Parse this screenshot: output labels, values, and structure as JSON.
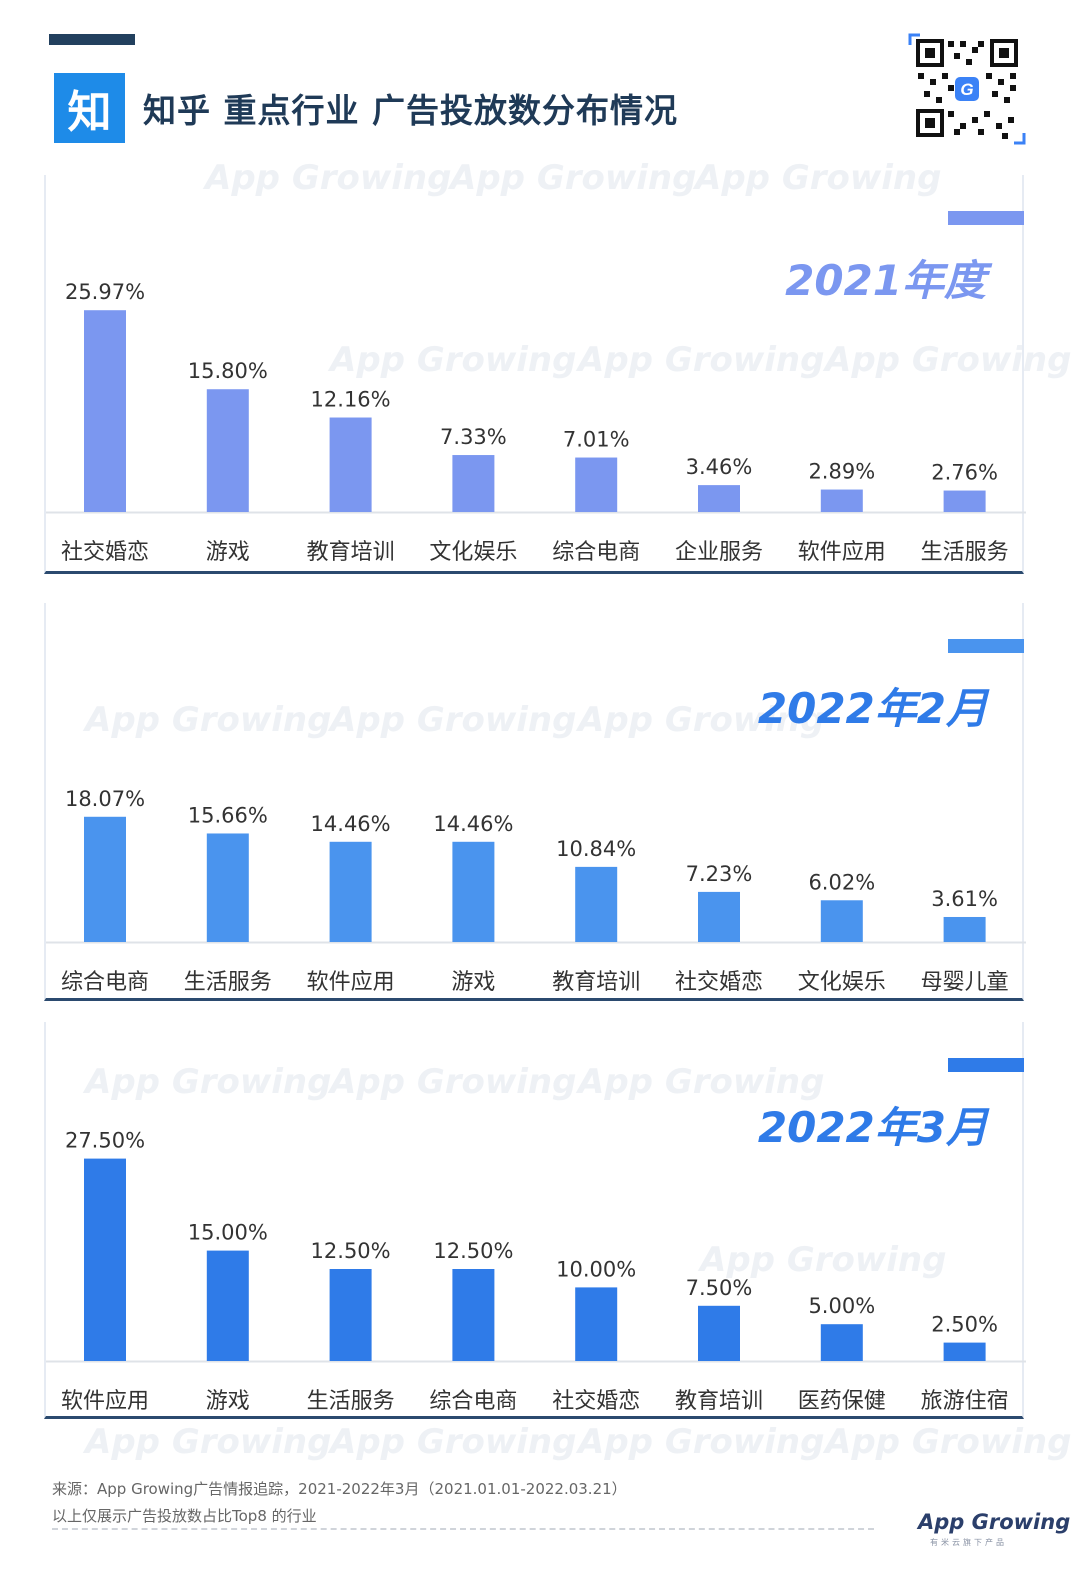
{
  "header": {
    "logo_char": "知",
    "title": "知乎 重点行业 广告投放数分布情况"
  },
  "watermark": "App Growing",
  "chart_data": [
    {
      "type": "bar",
      "title": "2021年度",
      "color": "#7b97f0",
      "categories": [
        "社交婚恋",
        "游戏",
        "教育培训",
        "文化娱乐",
        "综合电商",
        "企业服务",
        "软件应用",
        "生活服务"
      ],
      "values": [
        25.97,
        15.8,
        12.16,
        7.33,
        7.01,
        3.46,
        2.89,
        2.76
      ],
      "labels": [
        "25.97%",
        "15.80%",
        "12.16%",
        "7.33%",
        "7.01%",
        "3.46%",
        "2.89%",
        "2.76%"
      ],
      "ylim": [
        0,
        100
      ]
    },
    {
      "type": "bar",
      "title": "2022年2月",
      "color": "#4a94ee",
      "categories": [
        "综合电商",
        "生活服务",
        "软件应用",
        "游戏",
        "教育培训",
        "社交婚恋",
        "文化娱乐",
        "母婴儿童"
      ],
      "values": [
        18.07,
        15.66,
        14.46,
        14.46,
        10.84,
        7.23,
        6.02,
        3.61
      ],
      "labels": [
        "18.07%",
        "15.66%",
        "14.46%",
        "14.46%",
        "10.84%",
        "7.23%",
        "6.02%",
        "3.61%"
      ],
      "ylim": [
        0,
        100
      ]
    },
    {
      "type": "bar",
      "title": "2022年3月",
      "color": "#2f7be8",
      "categories": [
        "软件应用",
        "游戏",
        "生活服务",
        "综合电商",
        "社交婚恋",
        "教育培训",
        "医药保健",
        "旅游住宿"
      ],
      "values": [
        27.5,
        15.0,
        12.5,
        12.5,
        10.0,
        7.5,
        5.0,
        2.5
      ],
      "labels": [
        "27.50%",
        "15.00%",
        "12.50%",
        "12.50%",
        "10.00%",
        "7.50%",
        "5.00%",
        "2.50%"
      ],
      "ylim": [
        0,
        100
      ]
    }
  ],
  "footer": {
    "source": "来源：App Growing广告情报追踪，2021-2022年3月（2021.01.01-2022.03.21）",
    "note": "以上仅展示广告投放数占比Top8 的行业",
    "brand": "App Growing",
    "brand_sub": "有米云旗下产品"
  },
  "colors": {
    "title": "#1f3a57",
    "period_text": "#2f7be8",
    "tab": "#4a94ee"
  }
}
